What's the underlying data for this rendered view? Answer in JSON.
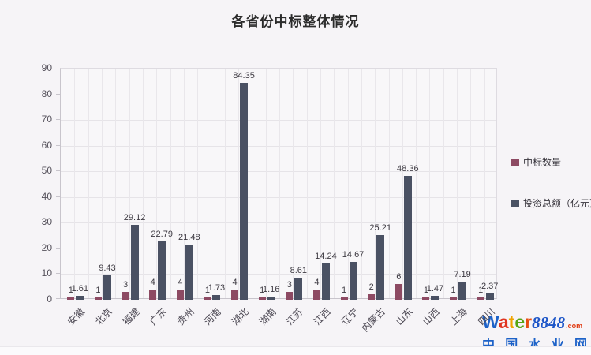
{
  "page": {
    "background": "#f6f4f7"
  },
  "title": "各省份中标整体情况",
  "chart_data": {
    "type": "bar",
    "title": "各省份中标整体情况",
    "categories": [
      "安徽",
      "北京",
      "福建",
      "广东",
      "贵州",
      "河南",
      "湖北",
      "湖南",
      "江苏",
      "江西",
      "辽宁",
      "内蒙古",
      "山东",
      "山西",
      "上海",
      "四川"
    ],
    "series": [
      {
        "id": "bid-count",
        "name": "中标数量",
        "color": "#8d4a63",
        "values": [
          1,
          1,
          3,
          4,
          4,
          1,
          4,
          1,
          3,
          4,
          1,
          2,
          6,
          1,
          1,
          1
        ]
      },
      {
        "id": "investment",
        "name": "投资总额（亿元）",
        "color": "#4a5163",
        "values": [
          1.61,
          9.43,
          29.12,
          22.79,
          21.48,
          1.73,
          84.35,
          1.16,
          8.61,
          14.24,
          14.67,
          25.21,
          48.36,
          1.47,
          7.19,
          2.37
        ]
      }
    ],
    "xlabel": "",
    "ylabel": "",
    "ylim": [
      0,
      90
    ],
    "ytick_step": 10,
    "grid": true,
    "value_labels": true,
    "legend_position": "right",
    "x_label_rotation": -45
  },
  "legend": {
    "items": [
      {
        "label": "中标数量",
        "color": "#8d4a63"
      },
      {
        "label": "投资总额（亿元）",
        "color": "#4a5163"
      }
    ]
  },
  "watermark": {
    "brand_letters": [
      {
        "ch": "W",
        "color": "#1d62c8"
      },
      {
        "ch": "a",
        "color": "#e0331f"
      },
      {
        "ch": "t",
        "color": "#efa400"
      },
      {
        "ch": "e",
        "color": "#56a413"
      },
      {
        "ch": "r",
        "color": "#e84e12"
      }
    ],
    "brand_number": "8848",
    "brand_number_color": "#1e56c8",
    "brand_tld": ".com",
    "brand_tld_color": "#e03c14",
    "tagline": "中国水业网",
    "tagline_color": "#1d62c8"
  }
}
